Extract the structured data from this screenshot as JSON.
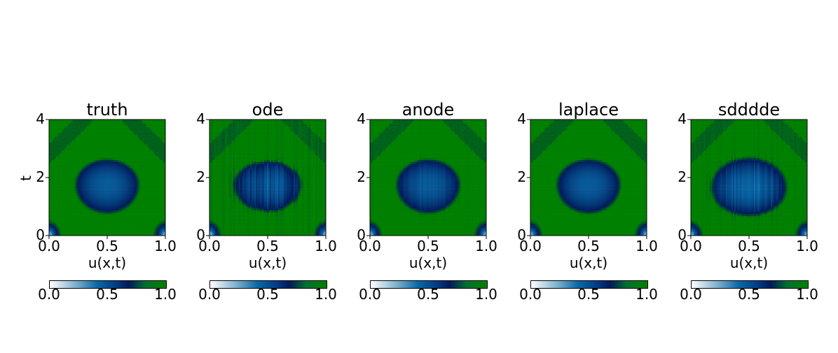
{
  "chart_data": [
    {
      "type": "heatmap",
      "title": "truth",
      "xlabel": "u(x,t)",
      "ylabel": "t",
      "xlim": [
        0.0,
        1.0
      ],
      "ylim": [
        0,
        4
      ],
      "xticks": [
        "0.0",
        "0.5",
        "1.0"
      ],
      "yticks": [
        "0",
        "2",
        "4"
      ],
      "colorbar": {
        "range": [
          0.0,
          1.0
        ],
        "ticks": [
          "0.0",
          "0.5",
          "1.0"
        ]
      },
      "colormap": [
        "#ffffff",
        "#0a6aa8",
        "#001a5a",
        "#008000"
      ],
      "blob": {
        "center_x": 0.5,
        "center_t": 1.75,
        "half_width_x": 0.25,
        "t_low": 0.85,
        "t_high": 2.55,
        "min_value": 0.4
      },
      "corner_values": {
        "x0_t0": 0.2,
        "x1_t0": 0.2
      },
      "noise": 0.0
    },
    {
      "type": "heatmap",
      "title": "ode",
      "xlabel": "u(x,t)",
      "ylabel": "",
      "xlim": [
        0.0,
        1.0
      ],
      "ylim": [
        0,
        4
      ],
      "xticks": [
        "0.0",
        "0.5",
        "1.0"
      ],
      "yticks": [
        "0",
        "2",
        "4"
      ],
      "colorbar": {
        "range": [
          0.0,
          1.0
        ],
        "ticks": [
          "0.0",
          "0.5",
          "1.0"
        ]
      },
      "colormap": [
        "#ffffff",
        "#0a6aa8",
        "#001a5a",
        "#008000"
      ],
      "blob": {
        "center_x": 0.5,
        "center_t": 1.75,
        "half_width_x": 0.27,
        "t_low": 0.9,
        "t_high": 2.5,
        "min_value": 0.42
      },
      "corner_values": {
        "x0_t0": 0.2,
        "x1_t0": 0.2
      },
      "noise": 0.12
    },
    {
      "type": "heatmap",
      "title": "anode",
      "xlabel": "u(x,t)",
      "ylabel": "",
      "xlim": [
        0.0,
        1.0
      ],
      "ylim": [
        0,
        4
      ],
      "xticks": [
        "0.0",
        "0.5",
        "1.0"
      ],
      "yticks": [
        "0",
        "2",
        "4"
      ],
      "colorbar": {
        "range": [
          0.0,
          1.0
        ],
        "ticks": [
          "0.0",
          "0.5",
          "1.0"
        ]
      },
      "colormap": [
        "#ffffff",
        "#0a6aa8",
        "#001a5a",
        "#008000"
      ],
      "blob": {
        "center_x": 0.5,
        "center_t": 1.75,
        "half_width_x": 0.25,
        "t_low": 0.85,
        "t_high": 2.55,
        "min_value": 0.4
      },
      "corner_values": {
        "x0_t0": 0.2,
        "x1_t0": 0.2
      },
      "noise": 0.03
    },
    {
      "type": "heatmap",
      "title": "laplace",
      "xlabel": "u(x,t)",
      "ylabel": "",
      "xlim": [
        0.0,
        1.0
      ],
      "ylim": [
        0,
        4
      ],
      "xticks": [
        "0.0",
        "0.5",
        "1.0"
      ],
      "yticks": [
        "0",
        "2",
        "4"
      ],
      "colorbar": {
        "range": [
          0.0,
          1.0
        ],
        "ticks": [
          "0.0",
          "0.5",
          "1.0"
        ]
      },
      "colormap": [
        "#ffffff",
        "#0a6aa8",
        "#001a5a",
        "#008000"
      ],
      "blob": {
        "center_x": 0.5,
        "center_t": 1.75,
        "half_width_x": 0.25,
        "t_low": 0.85,
        "t_high": 2.55,
        "min_value": 0.4
      },
      "corner_values": {
        "x0_t0": 0.2,
        "x1_t0": 0.2
      },
      "noise": 0.0
    },
    {
      "type": "heatmap",
      "title": "sdddde",
      "xlabel": "u(x,t)",
      "ylabel": "",
      "xlim": [
        0.0,
        1.0
      ],
      "ylim": [
        0,
        4
      ],
      "xticks": [
        "0.0",
        "0.5",
        "1.0"
      ],
      "yticks": [
        "0",
        "2",
        "4"
      ],
      "colorbar": {
        "range": [
          0.0,
          1.0
        ],
        "ticks": [
          "0.0",
          "0.5",
          "1.0"
        ]
      },
      "colormap": [
        "#ffffff",
        "#0a6aa8",
        "#001a5a",
        "#008000"
      ],
      "blob": {
        "center_x": 0.5,
        "center_t": 1.65,
        "half_width_x": 0.3,
        "t_low": 0.75,
        "t_high": 2.6,
        "min_value": 0.35
      },
      "corner_values": {
        "x0_t0": 0.2,
        "x1_t0": 0.2
      },
      "noise": 0.07
    }
  ]
}
